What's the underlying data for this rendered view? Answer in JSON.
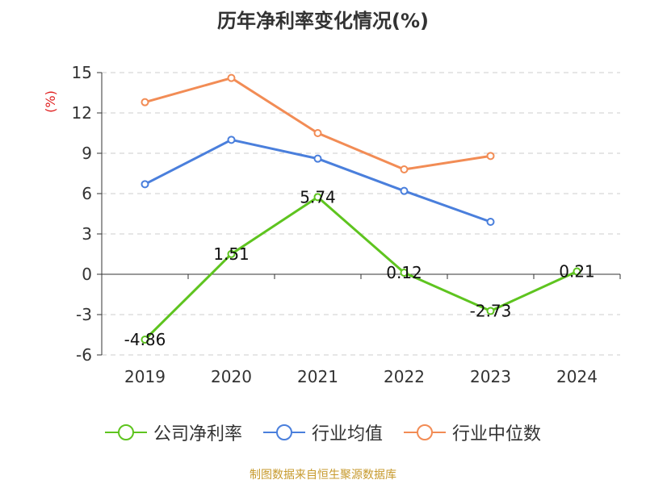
{
  "chart_data": {
    "type": "line",
    "title": "历年净利率变化情况(%)",
    "ylabel": "(%)",
    "categories": [
      "2019",
      "2020",
      "2021",
      "2022",
      "2023",
      "2024"
    ],
    "ylim": [
      -6,
      15
    ],
    "yticks": [
      15,
      12,
      9,
      6,
      3,
      0,
      -3,
      -6
    ],
    "grid": true,
    "legend_position": "bottom",
    "series": [
      {
        "name": "公司净利率",
        "color": "#5ec41f",
        "values": [
          -4.86,
          1.51,
          5.74,
          0.12,
          -2.73,
          0.21
        ],
        "labels": [
          "-4.86",
          "1.51",
          "5.74",
          "0.12",
          "-2.73",
          "0.21"
        ]
      },
      {
        "name": "行业均值",
        "color": "#4a7fdc",
        "values": [
          6.7,
          10.0,
          8.6,
          6.2,
          3.9,
          null
        ]
      },
      {
        "name": "行业中位数",
        "color": "#f28c55",
        "values": [
          12.8,
          14.6,
          10.5,
          7.8,
          8.8,
          null
        ]
      }
    ]
  },
  "source_text": "制图数据来自恒生聚源数据库",
  "colors": {
    "source": "#c79a2e",
    "ylabel": "#e02020",
    "grid": "#cccccc",
    "axis": "#333333"
  }
}
